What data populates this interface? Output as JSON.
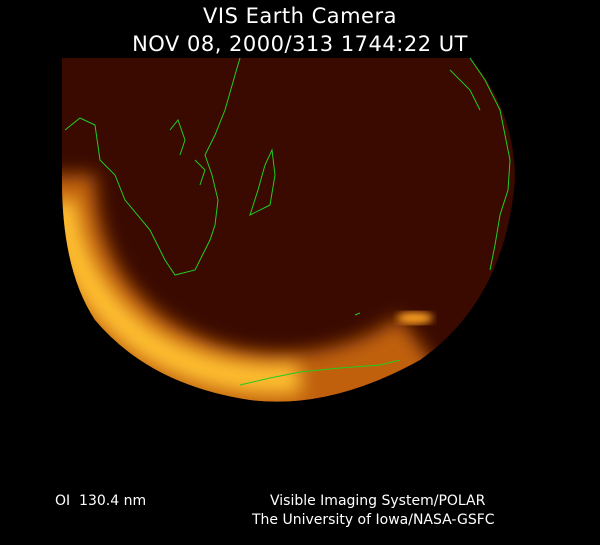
{
  "header": {
    "title": "VIS Earth Camera",
    "timestamp": "NOV 08, 2000/313 1744:22 UT"
  },
  "footer": {
    "wavelength": "OI  130.4 nm",
    "credit_line1": "Visible Imaging System/POLAR",
    "credit_line2": "The University of Iowa/NASA-GSFC"
  },
  "colors": {
    "background": "#000000",
    "disk": "#3a0a00",
    "aurora": "#ffc020",
    "coastlines": "#22cc22"
  }
}
